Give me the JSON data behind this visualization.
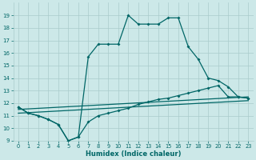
{
  "xlabel": "Humidex (Indice chaleur)",
  "bg_color": "#cce8e8",
  "grid_color": "#aacccc",
  "line_color": "#006666",
  "xlim": [
    -0.5,
    23.5
  ],
  "ylim": [
    9,
    20
  ],
  "yticks": [
    9,
    10,
    11,
    12,
    13,
    14,
    15,
    16,
    17,
    18,
    19
  ],
  "xticks": [
    0,
    1,
    2,
    3,
    4,
    5,
    6,
    7,
    8,
    9,
    10,
    11,
    12,
    13,
    14,
    15,
    16,
    17,
    18,
    19,
    20,
    21,
    22,
    23
  ],
  "curve1_x": [
    0,
    1,
    2,
    3,
    4,
    5,
    6,
    7,
    8,
    9,
    10,
    11,
    12,
    13,
    14,
    15,
    16,
    17,
    18,
    19,
    20,
    21,
    22,
    23
  ],
  "curve1_y": [
    11.7,
    11.2,
    11.0,
    10.7,
    10.3,
    9.0,
    9.3,
    15.7,
    16.7,
    16.7,
    16.7,
    19.0,
    18.3,
    18.3,
    18.3,
    18.8,
    18.8,
    16.5,
    15.5,
    14.0,
    13.8,
    13.3,
    12.5,
    12.4
  ],
  "curve2_x": [
    0,
    1,
    2,
    3,
    4,
    5,
    6,
    7,
    8,
    9,
    10,
    11,
    12,
    13,
    14,
    15,
    16,
    17,
    18,
    19,
    20,
    21,
    22,
    23
  ],
  "curve2_y": [
    11.7,
    11.2,
    11.0,
    10.7,
    10.3,
    9.0,
    9.3,
    10.5,
    11.0,
    11.2,
    11.4,
    11.6,
    11.9,
    12.1,
    12.3,
    12.4,
    12.6,
    12.8,
    13.0,
    13.2,
    13.4,
    12.5,
    12.5,
    12.4
  ],
  "line1": [
    [
      0,
      23
    ],
    [
      11.5,
      12.5
    ]
  ],
  "line2": [
    [
      0,
      23
    ],
    [
      11.2,
      12.2
    ]
  ]
}
